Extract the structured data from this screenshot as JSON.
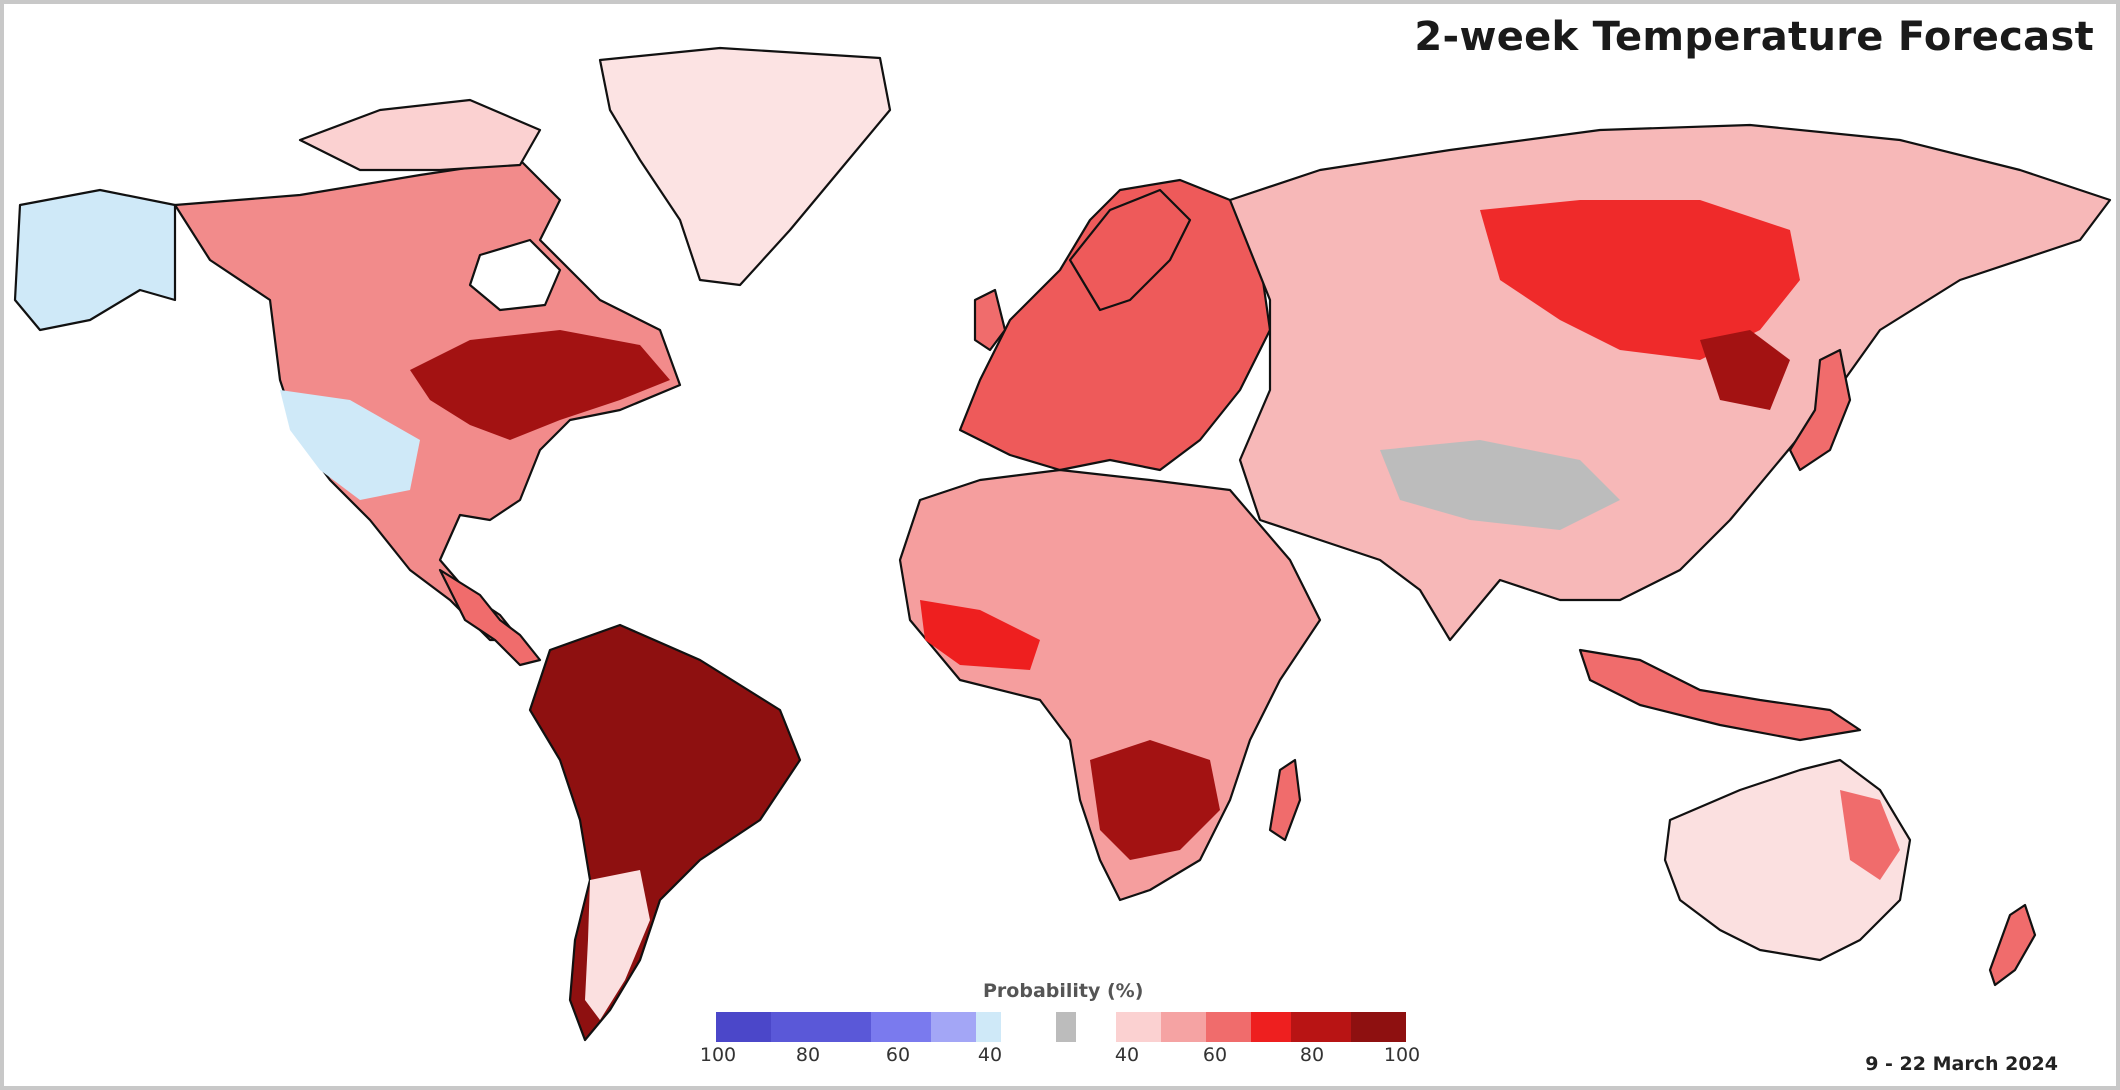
{
  "title": "2-week Temperature Forecast",
  "date_range": "9 - 22 March 2024",
  "legend": {
    "title": "Probability (%)",
    "cold_ticks": [
      "100",
      "80",
      "60",
      "40"
    ],
    "warm_ticks": [
      "40",
      "60",
      "80",
      "100"
    ],
    "cold_colors": [
      "#4b47c9",
      "#5a58d8",
      "#7a7aee",
      "#a3a6f6",
      "#cfe9f8"
    ],
    "neutral_color": "#bcbcbc",
    "warm_colors": [
      "#fbd1d1",
      "#f5a3a3",
      "#f06c6c",
      "#ee1f1f",
      "#b81414",
      "#8e1010"
    ]
  },
  "map": {
    "regions": [
      {
        "name": "north-america",
        "color": "#f28b8b"
      },
      {
        "name": "eastern-north-america",
        "color": "#a31212"
      },
      {
        "name": "alaska",
        "color": "#cfe9f8"
      },
      {
        "name": "greenland",
        "color": "#fce3e3"
      },
      {
        "name": "south-america",
        "color": "#8e1010"
      },
      {
        "name": "europe",
        "color": "#ee5a5a"
      },
      {
        "name": "africa",
        "color": "#f59e9e"
      },
      {
        "name": "southern-africa",
        "color": "#a31212"
      },
      {
        "name": "asia",
        "color": "#f7b8b8"
      },
      {
        "name": "siberia",
        "color": "#ef2a2a"
      },
      {
        "name": "australia",
        "color": "#fbe0e0"
      }
    ]
  }
}
